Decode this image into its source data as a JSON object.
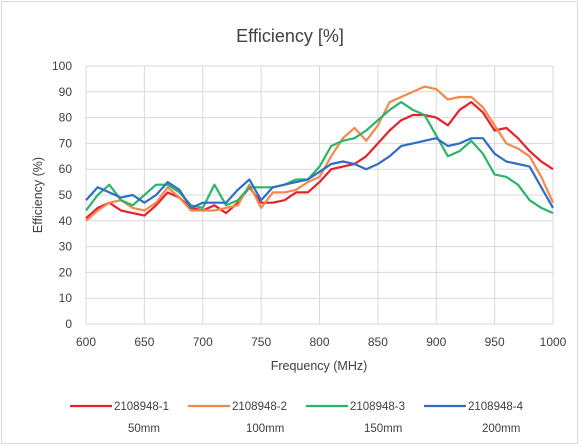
{
  "chart_data": {
    "type": "line",
    "title": "Efficiency [%]",
    "xlabel": "Frequency (MHz)",
    "ylabel": "Efficiency (%)",
    "xlim": [
      600,
      1000
    ],
    "ylim": [
      0,
      100
    ],
    "x_ticks": [
      600,
      650,
      700,
      750,
      800,
      850,
      900,
      950,
      1000
    ],
    "y_ticks": [
      0,
      10,
      20,
      30,
      40,
      50,
      60,
      70,
      80,
      90,
      100
    ],
    "grid": true,
    "legend_position": "bottom",
    "series": [
      {
        "name": "2108948-1",
        "sublabel": "50mm",
        "color": "#e8202a",
        "x": [
          600,
          610,
          620,
          630,
          640,
          650,
          660,
          670,
          680,
          690,
          700,
          710,
          720,
          730,
          740,
          750,
          760,
          770,
          780,
          790,
          800,
          810,
          820,
          830,
          840,
          850,
          860,
          870,
          880,
          890,
          900,
          910,
          920,
          930,
          940,
          950,
          960,
          970,
          980,
          990,
          1000
        ],
        "values": [
          41,
          45,
          47,
          44,
          43,
          42,
          46,
          51,
          49,
          45,
          44,
          46,
          43,
          47,
          53,
          47,
          47,
          48,
          51,
          51,
          55,
          60,
          61,
          62,
          65,
          70,
          75,
          79,
          81,
          81,
          80,
          77,
          83,
          86,
          82,
          75,
          76,
          72,
          67,
          63,
          60
        ]
      },
      {
        "name": "2108948-2",
        "sublabel": "100mm",
        "color": "#f4884a",
        "x": [
          600,
          610,
          620,
          630,
          640,
          650,
          660,
          670,
          680,
          690,
          700,
          710,
          720,
          730,
          740,
          750,
          760,
          770,
          780,
          790,
          800,
          810,
          820,
          830,
          840,
          850,
          860,
          870,
          880,
          890,
          900,
          910,
          920,
          930,
          940,
          950,
          960,
          970,
          980,
          990,
          1000
        ],
        "values": [
          40,
          44,
          47,
          48,
          45,
          44,
          47,
          53,
          49,
          44,
          44,
          44,
          45,
          46,
          54,
          45,
          51,
          51,
          52,
          55,
          57,
          65,
          72,
          76,
          71,
          77,
          86,
          88,
          90,
          92,
          91,
          87,
          88,
          88,
          84,
          77,
          70,
          68,
          65,
          57,
          47
        ]
      },
      {
        "name": "2108948-3",
        "sublabel": "150mm",
        "color": "#2ab56b",
        "x": [
          600,
          610,
          620,
          630,
          640,
          650,
          660,
          670,
          680,
          690,
          700,
          710,
          720,
          730,
          740,
          750,
          760,
          770,
          780,
          790,
          800,
          810,
          820,
          830,
          840,
          850,
          860,
          870,
          880,
          890,
          900,
          910,
          920,
          930,
          940,
          950,
          960,
          970,
          980,
          990,
          1000
        ],
        "values": [
          44,
          50,
          54,
          48,
          46,
          50,
          54,
          54,
          51,
          46,
          45,
          54,
          46,
          48,
          53,
          53,
          53,
          54,
          56,
          56,
          61,
          69,
          71,
          72,
          75,
          79,
          83,
          86,
          83,
          81,
          73,
          65,
          67,
          71,
          66,
          58,
          57,
          54,
          48,
          45,
          43
        ]
      },
      {
        "name": "2108948-4",
        "sublabel": "200mm",
        "color": "#2f6ec2",
        "x": [
          600,
          610,
          620,
          630,
          640,
          650,
          660,
          670,
          680,
          690,
          700,
          710,
          720,
          730,
          740,
          750,
          760,
          770,
          780,
          790,
          800,
          810,
          820,
          830,
          840,
          850,
          860,
          870,
          880,
          890,
          900,
          910,
          920,
          930,
          940,
          950,
          960,
          970,
          980,
          990,
          1000
        ],
        "values": [
          48,
          53,
          51,
          49,
          50,
          47,
          50,
          55,
          52,
          45,
          47,
          47,
          47,
          52,
          56,
          48,
          53,
          54,
          55,
          56,
          59,
          62,
          63,
          62,
          60,
          62,
          65,
          69,
          70,
          71,
          72,
          69,
          70,
          72,
          72,
          66,
          63,
          62,
          61,
          53,
          45
        ]
      }
    ]
  }
}
